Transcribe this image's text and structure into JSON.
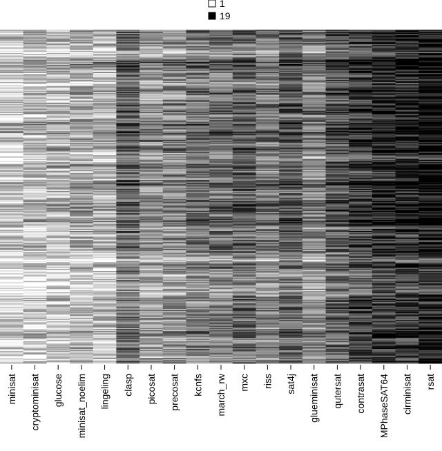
{
  "chart_data": {
    "type": "heatmap",
    "title": "",
    "xlabel": "",
    "ylabel": "",
    "columns": [
      "minisat",
      "cryptominisat",
      "glucose",
      "minisat_noelim",
      "lingeling",
      "clasp",
      "picosat",
      "precosat",
      "kcnfs",
      "march_rw",
      "mxc",
      "riss",
      "sat4j",
      "glueminisat",
      "qutersat",
      "contrasat",
      "MPhaseSAT64",
      "cirminisat",
      "rsat"
    ],
    "legend": {
      "entries": [
        {
          "label": "1",
          "color": "#ffffff"
        },
        {
          "label": "19",
          "color": "#000000"
        }
      ],
      "position": "top"
    },
    "value_range": [
      1,
      19
    ],
    "color_scale": {
      "low": "#ffffff",
      "high": "#000000"
    },
    "column_mean_rank": [
      4.5,
      5.0,
      5.5,
      6.5,
      6.0,
      11.5,
      8.0,
      9.0,
      10.5,
      11.0,
      12.0,
      10.0,
      12.0,
      9.5,
      12.5,
      14.5,
      15.5,
      16.0,
      17.0
    ],
    "row_count": 300,
    "grid": false
  }
}
